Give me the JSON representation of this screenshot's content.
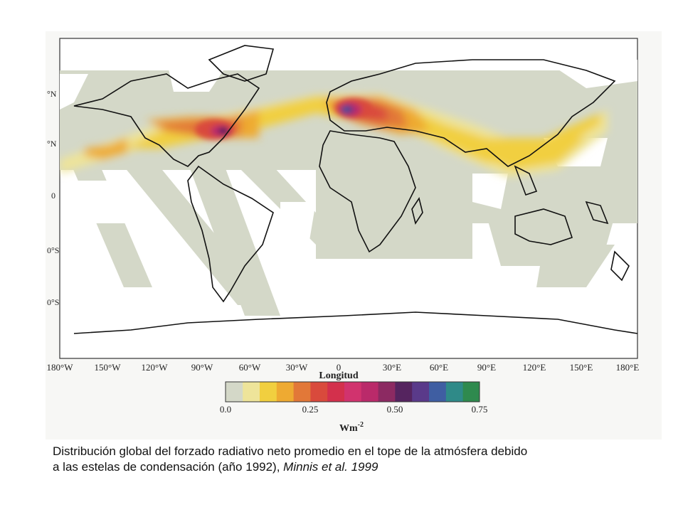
{
  "map": {
    "lat_labels": [
      "°N",
      "°N",
      "0",
      "0°S",
      "0°S"
    ],
    "lon_labels": [
      "180°W",
      "150°W",
      "120°W",
      "90°W",
      "60°W",
      "30°W",
      "0",
      "30°E",
      "60°E",
      "90°E",
      "120°E",
      "150°E",
      "180°E"
    ],
    "axis_title": "Longitud"
  },
  "colorbar": {
    "colors": [
      "#d4d8c8",
      "#eee49a",
      "#f1cf3f",
      "#eeaa32",
      "#e27838",
      "#d94a3c",
      "#d3304c",
      "#d1336e",
      "#ba2a6a",
      "#8c2a62",
      "#55245f",
      "#5a3a8a",
      "#3f5ea2",
      "#2f8a88",
      "#2f8a4e"
    ],
    "ticks": [
      {
        "label": "0.0",
        "value": 0.0
      },
      {
        "label": "0.25",
        "value": 0.25
      },
      {
        "label": "0.50",
        "value": 0.5
      },
      {
        "label": "0.75",
        "value": 0.75
      }
    ],
    "unit_base": "Wm",
    "unit_exp": "-2"
  },
  "caption": {
    "line1": "Distribución global del forzado radiativo neto promedio en el tope de la atmósfera debido",
    "line2_prefix": "a las estelas de condensación (año 1992), ",
    "line2_cite": "Minnis et al. 1999"
  }
}
